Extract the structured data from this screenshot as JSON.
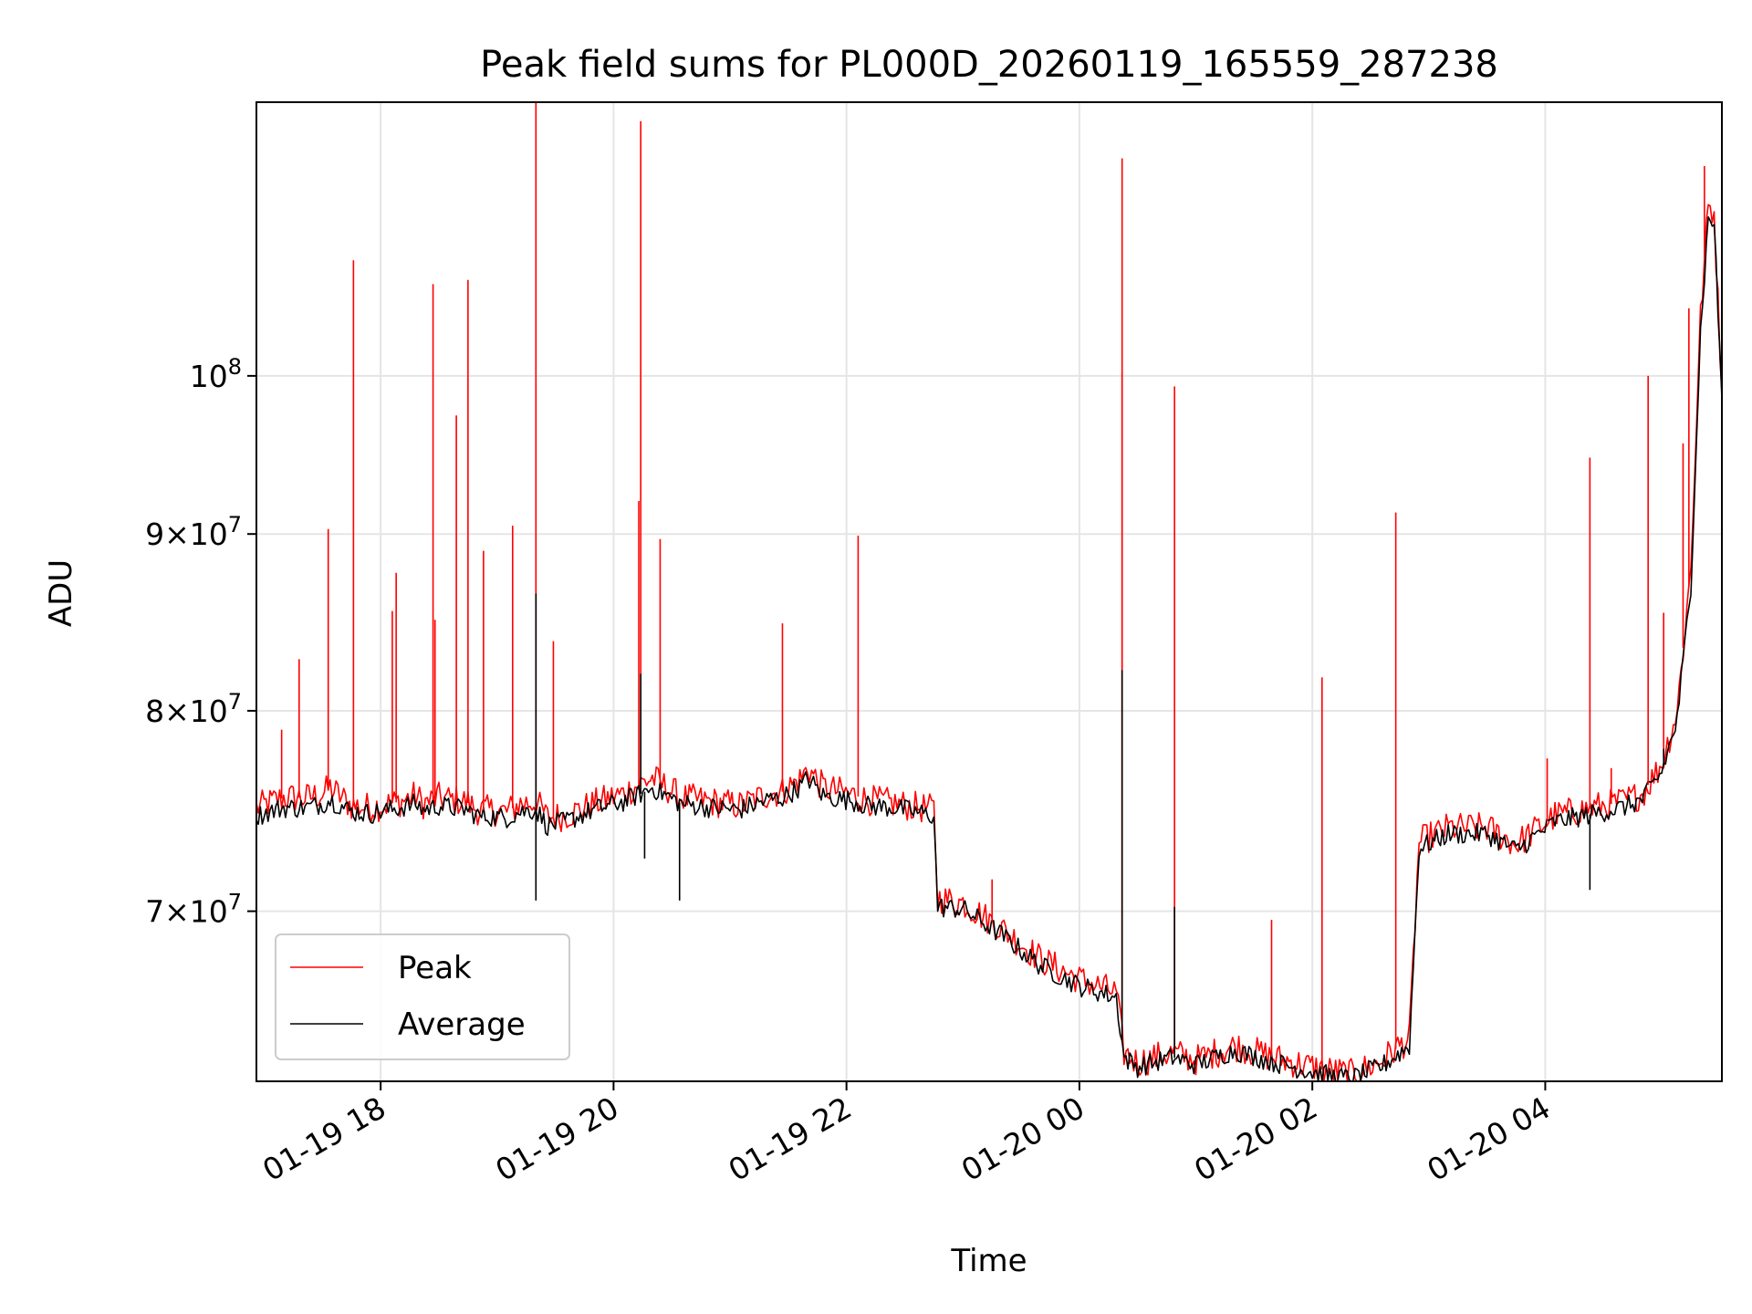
{
  "chart_data": {
    "type": "line",
    "title": "Peak field sums for PL000D_20260119_165559_287238",
    "xlabel": "Time",
    "ylabel": "ADU",
    "x_range": [
      "2026-01-19 16:56",
      "2026-01-20 05:31"
    ],
    "ylim": [
      62500000,
      120000000
    ],
    "yscale": "log",
    "grid": true,
    "legend_position": "lower left",
    "x_ticks": [
      {
        "t": "2026-01-19 18:00",
        "label": "01-19 18"
      },
      {
        "t": "2026-01-19 20:00",
        "label": "01-19 20"
      },
      {
        "t": "2026-01-19 22:00",
        "label": "01-19 22"
      },
      {
        "t": "2026-01-20 00:00",
        "label": "01-20 00"
      },
      {
        "t": "2026-01-20 02:00",
        "label": "01-20 02"
      },
      {
        "t": "2026-01-20 04:00",
        "label": "01-20 04"
      }
    ],
    "y_ticks": [
      {
        "v": 70000000,
        "mant": "7",
        "exp": "7"
      },
      {
        "v": 80000000,
        "mant": "8",
        "exp": "7"
      },
      {
        "v": 90000000,
        "mant": "9",
        "exp": "7"
      },
      {
        "v": 100000000,
        "mant": "",
        "exp": "8"
      }
    ],
    "series": [
      {
        "name": "Peak",
        "color": "#ff0000",
        "x": [
          "2026-01-19 16:56",
          "2026-01-19 17:10",
          "2026-01-19 17:22",
          "2026-01-19 17:30",
          "2026-01-19 17:34",
          "2026-01-19 17:45",
          "2026-01-19 17:55",
          "2026-01-19 18:10",
          "2026-01-19 18:18",
          "2026-01-19 18:22",
          "2026-01-19 18:30",
          "2026-01-19 18:44",
          "2026-01-19 18:50",
          "2026-01-19 19:05",
          "2026-01-19 19:12",
          "2026-01-19 19:20",
          "2026-01-19 19:26",
          "2026-01-19 19:35",
          "2026-01-19 19:50",
          "2026-01-19 20:05",
          "2026-01-19 20:14",
          "2026-01-19 20:20",
          "2026-01-19 20:35",
          "2026-01-19 20:50",
          "2026-01-19 21:05",
          "2026-01-19 21:20",
          "2026-01-19 21:27",
          "2026-01-19 21:37",
          "2026-01-19 21:40",
          "2026-01-19 21:48",
          "2026-01-19 22:05",
          "2026-01-19 22:10",
          "2026-01-19 22:25",
          "2026-01-19 22:45",
          "2026-01-19 22:47",
          "2026-01-19 23:00",
          "2026-01-19 23:20",
          "2026-01-19 23:40",
          "2026-01-20 00:00",
          "2026-01-20 00:19",
          "2026-01-20 00:23",
          "2026-01-20 00:30",
          "2026-01-20 00:48",
          "2026-01-20 01:00",
          "2026-01-20 01:20",
          "2026-01-20 01:40",
          "2026-01-20 01:50",
          "2026-01-20 02:05",
          "2026-01-20 02:20",
          "2026-01-20 02:35",
          "2026-01-20 02:42",
          "2026-01-20 02:50",
          "2026-01-20 02:55",
          "2026-01-20 03:10",
          "2026-01-20 03:30",
          "2026-01-20 03:45",
          "2026-01-20 04:05",
          "2026-01-20 04:20",
          "2026-01-20 04:40",
          "2026-01-20 04:50",
          "2026-01-20 05:00",
          "2026-01-20 05:08",
          "2026-01-20 05:15",
          "2026-01-20 05:20",
          "2026-01-20 05:24",
          "2026-01-20 05:27",
          "2026-01-20 05:31"
        ],
        "y": [
          75000000,
          75500000,
          75500000,
          75700000,
          76000000,
          75100000,
          75000000,
          75300000,
          75600000,
          75200000,
          75500000,
          75300000,
          74900000,
          74800000,
          75200000,
          75300000,
          74500000,
          74600000,
          75200000,
          75700000,
          76200000,
          76500000,
          75500000,
          75300000,
          75100000,
          75700000,
          75800000,
          76500000,
          77000000,
          76000000,
          75600000,
          75400000,
          75200000,
          74900000,
          70600000,
          70400000,
          69200000,
          67800000,
          66900000,
          66300000,
          63700000,
          63300000,
          63700000,
          63400000,
          64000000,
          63500000,
          63300000,
          63000000,
          62800000,
          63300000,
          63800000,
          64300000,
          73300000,
          74000000,
          74000000,
          73200000,
          74600000,
          74900000,
          75300000,
          75700000,
          77200000,
          80000000,
          88000000,
          104000000,
          112000000,
          111500000,
          99000000
        ]
      },
      {
        "name": "Average",
        "color": "#000000",
        "x": [
          "2026-01-19 16:56",
          "2026-01-19 17:10",
          "2026-01-19 17:22",
          "2026-01-19 17:30",
          "2026-01-19 17:34",
          "2026-01-19 17:45",
          "2026-01-19 17:55",
          "2026-01-19 18:10",
          "2026-01-19 18:18",
          "2026-01-19 18:22",
          "2026-01-19 18:30",
          "2026-01-19 18:44",
          "2026-01-19 18:50",
          "2026-01-19 19:05",
          "2026-01-19 19:12",
          "2026-01-19 19:20",
          "2026-01-19 19:26",
          "2026-01-19 19:35",
          "2026-01-19 19:50",
          "2026-01-19 20:05",
          "2026-01-19 20:14",
          "2026-01-19 20:20",
          "2026-01-19 20:35",
          "2026-01-19 20:50",
          "2026-01-19 21:05",
          "2026-01-19 21:20",
          "2026-01-19 21:27",
          "2026-01-19 21:37",
          "2026-01-19 21:40",
          "2026-01-19 21:48",
          "2026-01-19 22:05",
          "2026-01-19 22:10",
          "2026-01-19 22:25",
          "2026-01-19 22:45",
          "2026-01-19 22:47",
          "2026-01-19 23:00",
          "2026-01-19 23:20",
          "2026-01-19 23:40",
          "2026-01-20 00:00",
          "2026-01-20 00:19",
          "2026-01-20 00:23",
          "2026-01-20 00:30",
          "2026-01-20 00:48",
          "2026-01-20 01:00",
          "2026-01-20 01:20",
          "2026-01-20 01:40",
          "2026-01-20 01:50",
          "2026-01-20 02:05",
          "2026-01-20 02:20",
          "2026-01-20 02:35",
          "2026-01-20 02:42",
          "2026-01-20 02:50",
          "2026-01-20 02:55",
          "2026-01-20 03:10",
          "2026-01-20 03:30",
          "2026-01-20 03:45",
          "2026-01-20 04:05",
          "2026-01-20 04:20",
          "2026-01-20 04:40",
          "2026-01-20 04:50",
          "2026-01-20 05:00",
          "2026-01-20 05:08",
          "2026-01-20 05:15",
          "2026-01-20 05:20",
          "2026-01-20 05:24",
          "2026-01-20 05:27",
          "2026-01-20 05:31"
        ],
        "y": [
          74600000,
          75000000,
          75000000,
          75200000,
          75400000,
          74800000,
          74700000,
          75000000,
          75200000,
          74900000,
          75100000,
          74900000,
          74600000,
          74500000,
          74800000,
          74900000,
          74100000,
          74300000,
          74900000,
          75300000,
          75700000,
          76000000,
          75200000,
          75000000,
          74900000,
          75400000,
          75500000,
          76100000,
          76500000,
          75600000,
          75300000,
          75100000,
          75000000,
          74600000,
          70200000,
          70100000,
          68900000,
          67500000,
          66600000,
          66100000,
          63500000,
          63100000,
          63500000,
          63200000,
          63800000,
          63300000,
          63100000,
          62800000,
          62600000,
          63100000,
          63500000,
          64000000,
          73000000,
          73700000,
          73700000,
          72900000,
          74300000,
          74600000,
          75000000,
          75400000,
          76800000,
          79500000,
          87000000,
          103000000,
          111000000,
          110800000,
          98500000
        ]
      }
    ],
    "spikes": [
      {
        "series": "Peak",
        "t": "2026-01-19 17:09",
        "y": 79000000
      },
      {
        "series": "Peak",
        "t": "2026-01-19 17:18",
        "y": 82800000
      },
      {
        "series": "Peak",
        "t": "2026-01-19 17:33",
        "y": 90300000
      },
      {
        "series": "Peak",
        "t": "2026-01-19 17:46",
        "y": 108000000
      },
      {
        "series": "Peak",
        "t": "2026-01-19 18:06",
        "y": 85500000
      },
      {
        "series": "Peak",
        "t": "2026-01-19 18:08",
        "y": 87700000
      },
      {
        "series": "Peak",
        "t": "2026-01-19 18:27",
        "y": 106300000
      },
      {
        "series": "Peak",
        "t": "2026-01-19 18:28",
        "y": 85000000
      },
      {
        "series": "Peak",
        "t": "2026-01-19 18:39",
        "y": 97400000
      },
      {
        "series": "Peak",
        "t": "2026-01-19 18:45",
        "y": 106600000
      },
      {
        "series": "Peak",
        "t": "2026-01-19 18:53",
        "y": 89000000
      },
      {
        "series": "Peak",
        "t": "2026-01-19 19:08",
        "y": 90500000
      },
      {
        "series": "Peak",
        "t": "2026-01-19 19:20",
        "y": 120000000
      },
      {
        "series": "Peak",
        "t": "2026-01-19 19:29",
        "y": 83800000
      },
      {
        "series": "Peak",
        "t": "2026-01-19 20:13",
        "y": 92000000
      },
      {
        "series": "Peak",
        "t": "2026-01-19 20:14",
        "y": 118500000
      },
      {
        "series": "Peak",
        "t": "2026-01-19 20:24",
        "y": 89700000
      },
      {
        "series": "Peak",
        "t": "2026-01-19 21:27",
        "y": 84800000
      },
      {
        "series": "Peak",
        "t": "2026-01-19 22:06",
        "y": 89900000
      },
      {
        "series": "Peak",
        "t": "2026-01-19 23:15",
        "y": 71500000
      },
      {
        "series": "Peak",
        "t": "2026-01-20 00:22",
        "y": 115600000
      },
      {
        "series": "Peak",
        "t": "2026-01-20 00:22",
        "y": 100200000
      },
      {
        "series": "Peak",
        "t": "2026-01-20 00:49",
        "y": 99300000
      },
      {
        "series": "Peak",
        "t": "2026-01-20 01:39",
        "y": 69600000
      },
      {
        "series": "Peak",
        "t": "2026-01-20 02:05",
        "y": 81800000
      },
      {
        "series": "Peak",
        "t": "2026-01-20 02:43",
        "y": 91300000
      },
      {
        "series": "Peak",
        "t": "2026-01-20 04:01",
        "y": 77500000
      },
      {
        "series": "Peak",
        "t": "2026-01-20 04:23",
        "y": 94700000
      },
      {
        "series": "Peak",
        "t": "2026-01-20 04:34",
        "y": 77000000
      },
      {
        "series": "Peak",
        "t": "2026-01-20 04:53",
        "y": 100000000
      },
      {
        "series": "Peak",
        "t": "2026-01-20 05:01",
        "y": 85400000
      },
      {
        "series": "Peak",
        "t": "2026-01-20 05:11",
        "y": 95600000
      },
      {
        "series": "Peak",
        "t": "2026-01-20 05:14",
        "y": 104600000
      },
      {
        "series": "Peak",
        "t": "2026-01-20 05:22",
        "y": 115000000
      },
      {
        "series": "Average",
        "t": "2026-01-19 19:20",
        "y": 86500000
      },
      {
        "series": "Average",
        "t": "2026-01-19 19:20",
        "y": 70500000
      },
      {
        "series": "Average",
        "t": "2026-01-19 20:14",
        "y": 82000000
      },
      {
        "series": "Average",
        "t": "2026-01-19 20:16",
        "y": 72500000
      },
      {
        "series": "Average",
        "t": "2026-01-19 20:34",
        "y": 70500000
      },
      {
        "series": "Average",
        "t": "2026-01-20 00:22",
        "y": 82200000
      },
      {
        "series": "Average",
        "t": "2026-01-20 00:49",
        "y": 70200000
      },
      {
        "series": "Average",
        "t": "2026-01-20 04:23",
        "y": 71000000
      },
      {
        "series": "Average",
        "t": "2026-01-20 05:01",
        "y": 78000000
      }
    ]
  }
}
